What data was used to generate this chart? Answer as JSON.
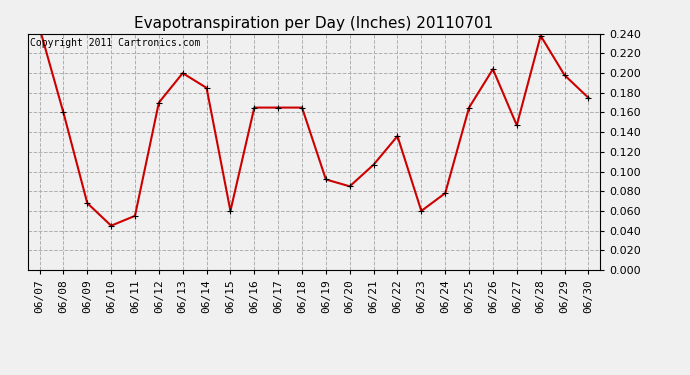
{
  "title": "Evapotranspiration per Day (Inches) 20110701",
  "copyright_text": "Copyright 2011 Cartronics.com",
  "dates": [
    "06/07",
    "06/08",
    "06/09",
    "06/10",
    "06/11",
    "06/12",
    "06/13",
    "06/14",
    "06/15",
    "06/16",
    "06/17",
    "06/18",
    "06/19",
    "06/20",
    "06/21",
    "06/22",
    "06/23",
    "06/24",
    "06/25",
    "06/26",
    "06/27",
    "06/28",
    "06/29",
    "06/30"
  ],
  "values": [
    0.246,
    0.16,
    0.068,
    0.045,
    0.055,
    0.17,
    0.2,
    0.185,
    0.06,
    0.165,
    0.165,
    0.165,
    0.092,
    0.085,
    0.107,
    0.136,
    0.06,
    0.078,
    0.165,
    0.204,
    0.147,
    0.238,
    0.198,
    0.175
  ],
  "line_color": "#cc0000",
  "marker": "+",
  "marker_size": 5,
  "background_color": "#f0f0f0",
  "grid_color": "#b0b0b0",
  "ylim": [
    0.0,
    0.24
  ],
  "ytick_step": 0.02,
  "title_fontsize": 11,
  "copyright_fontsize": 7,
  "tick_fontsize": 8
}
